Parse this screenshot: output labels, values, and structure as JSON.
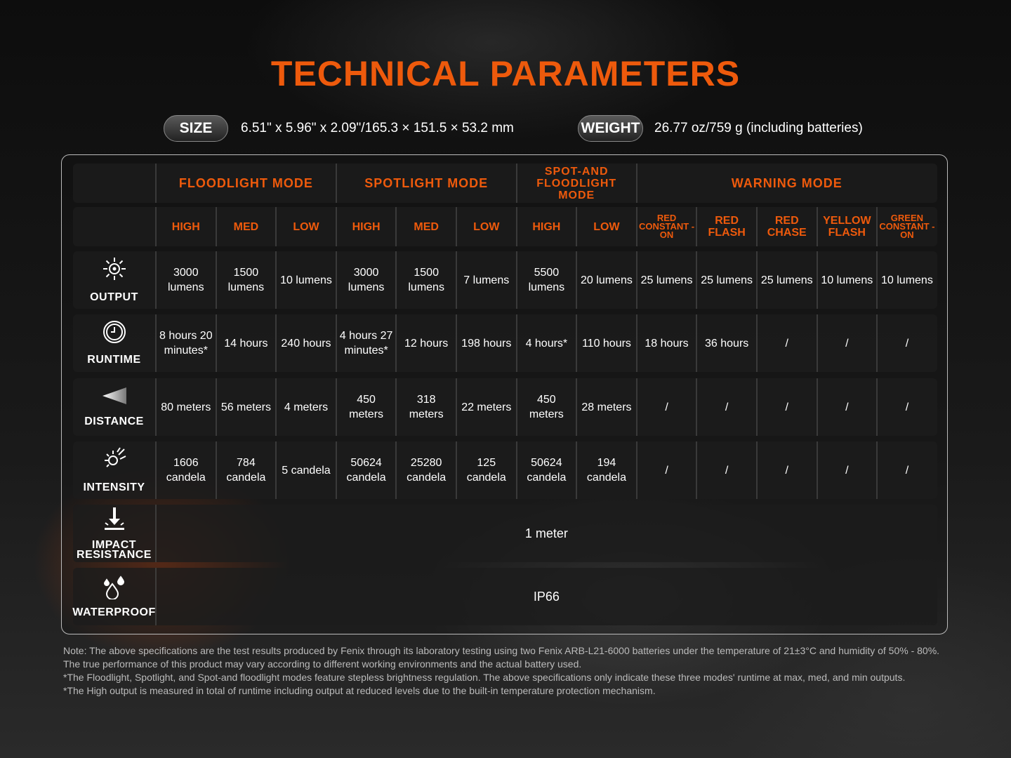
{
  "title": "TECHNICAL PARAMETERS",
  "size": {
    "label": "SIZE",
    "value": "6.51\" x 5.96\" x 2.09\"/165.3 × 151.5 × 53.2 mm"
  },
  "weight": {
    "label": "WEIGHT",
    "value": "26.77 oz/759 g (including batteries)"
  },
  "accent_color": "#ee5a0c",
  "modes": [
    {
      "label": "FLOODLIGHT MODE",
      "span": 3
    },
    {
      "label": "SPOTLIGHT MODE",
      "span": 3
    },
    {
      "label": "SPOT-AND FLOODLIGHT MODE",
      "span": 2
    },
    {
      "label": "WARNING MODE",
      "span": 5
    }
  ],
  "levels": [
    "HIGH",
    "MED",
    "LOW",
    "HIGH",
    "MED",
    "LOW",
    "HIGH",
    "LOW",
    "RED CONSTANT -ON",
    "RED FLASH",
    "RED CHASE",
    "YELLOW FLASH",
    "GREEN CONSTANT -ON"
  ],
  "rows": [
    {
      "label": "OUTPUT",
      "icon": "sun-icon",
      "values": [
        "3000 lumens",
        "1500 lumens",
        "10 lumens",
        "3000 lumens",
        "1500 lumens",
        "7 lumens",
        "5500 lumens",
        "20 lumens",
        "25 lumens",
        "25 lumens",
        "25 lumens",
        "10 lumens",
        "10 lumens"
      ]
    },
    {
      "label": "RUNTIME",
      "icon": "clock-icon",
      "values": [
        "8 hours 20 minutes*",
        "14 hours",
        "240 hours",
        "4 hours 27 minutes*",
        "12 hours",
        "198 hours",
        "4 hours*",
        "110 hours",
        "18 hours",
        "36 hours",
        "/",
        "/",
        "/"
      ]
    },
    {
      "label": "DISTANCE",
      "icon": "beam-icon",
      "values": [
        "80 meters",
        "56 meters",
        "4 meters",
        "450 meters",
        "318 meters",
        "22 meters",
        "450 meters",
        "28 meters",
        "/",
        "/",
        "/",
        "/",
        "/"
      ]
    },
    {
      "label": "INTENSITY",
      "icon": "intensity-icon",
      "values": [
        "1606 candela",
        "784 candela",
        "5 candela",
        "50624 candela",
        "25280 candela",
        "125 candela",
        "50624 candela",
        "194 candela",
        "/",
        "/",
        "/",
        "/",
        "/"
      ]
    }
  ],
  "merged_rows": [
    {
      "label": "IMPACT RESISTANCE",
      "icon": "impact-icon",
      "value": "1 meter"
    },
    {
      "label": "WATERPROOF",
      "icon": "water-drops-icon",
      "value": "IP66"
    }
  ],
  "notes": [
    "Note: The above specifications are the test results produced by Fenix through its laboratory testing using two Fenix ARB-L21-6000 batteries under the temperature of 21±3°C and humidity of 50% - 80%. The true performance of this product may vary according to different working environments and the actual battery used.",
    "*The Floodlight, Spotlight, and Spot-and floodlight modes feature stepless brightness regulation. The above specifications only indicate these three modes' runtime at max, med, and min outputs.",
    "*The High output is measured in total of runtime including output at reduced levels due to the built-in temperature protection mechanism."
  ]
}
